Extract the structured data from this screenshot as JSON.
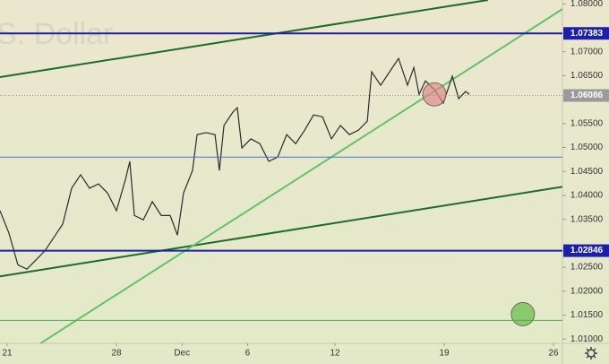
{
  "chart_data": {
    "type": "line",
    "watermark": "S. Dollar",
    "color": "#2b2b2b",
    "x": [
      -0.33,
      0.08,
      0.49,
      0.9,
      1.31,
      1.72,
      2.13,
      2.54,
      2.95,
      3.36,
      3.77,
      4.18,
      4.59,
      5.0,
      5.41,
      5.61,
      5.82,
      6.23,
      6.64,
      7.05,
      7.46,
      7.79,
      8.07,
      8.48,
      8.69,
      9.1,
      9.51,
      9.71,
      9.92,
      10.33,
      10.53,
      10.74,
      11.15,
      11.56,
      11.97,
      12.38,
      12.79,
      13.2,
      13.61,
      14.02,
      14.43,
      14.84,
      15.25,
      15.66,
      16.07,
      16.48,
      16.68,
      17.09,
      17.5,
      17.91,
      18.32,
      18.61,
      18.85,
      19.14,
      19.55,
      19.96,
      20.37,
      20.66,
      20.98,
      21.15
    ],
    "values": [
      1.0368,
      1.0321,
      1.0255,
      1.0246,
      1.0265,
      1.0284,
      1.0312,
      1.034,
      1.0415,
      1.0443,
      1.0415,
      1.0424,
      1.0405,
      1.0368,
      1.0433,
      1.0471,
      1.0358,
      1.0349,
      1.0387,
      1.0358,
      1.0358,
      1.0317,
      1.0405,
      1.0452,
      1.0527,
      1.0531,
      1.0527,
      1.0452,
      1.0546,
      1.0574,
      1.0583,
      1.0499,
      1.0518,
      1.0508,
      1.0471,
      1.048,
      1.0527,
      1.0508,
      1.0536,
      1.0568,
      1.0564,
      1.0518,
      1.0546,
      1.0527,
      1.0536,
      1.0555,
      1.0658,
      1.063,
      1.0658,
      1.0686,
      1.063,
      1.0667,
      1.0611,
      1.0639,
      1.0621,
      1.0593,
      1.0649,
      1.0602,
      1.0617,
      1.0611
    ],
    "levels": [
      {
        "value": 1.07383,
        "color": "#1c1fa8",
        "width": 2,
        "labeled": true
      },
      {
        "value": 1.06086,
        "color": "#9a9a9a",
        "width": 1,
        "labeled": true
      },
      {
        "value": 1.048,
        "color": "#3d7bd8",
        "width": 1,
        "labeled": false
      },
      {
        "value": 1.02846,
        "color": "#1c1fa8",
        "width": 2,
        "labeled": true
      },
      {
        "value": 1.0139,
        "color": "#4caf50",
        "width": 1,
        "labeled": false
      }
    ],
    "trendlines": [
      {
        "x": [
          -0.33,
          22.0
        ],
        "values": [
          1.0647,
          1.0808
        ],
        "color": "#1b6b2a"
      },
      {
        "x": [
          -0.33,
          25.41
        ],
        "values": [
          1.0231,
          1.0418
        ],
        "color": "#1b6b2a"
      },
      {
        "x": [
          1.52,
          25.41
        ],
        "values": [
          1.0091,
          1.0789
        ],
        "color": "#66c266"
      }
    ],
    "markers": [
      {
        "x": 19.55,
        "value": 1.0611,
        "color": "#e08a8a"
      },
      {
        "x": 23.6,
        "value": 1.0152,
        "color": "#66bb44"
      }
    ],
    "xlim": [
      -0.33,
      25.41
    ],
    "ylim": [
      1.0091,
      1.0808
    ],
    "xticks": [
      {
        "value": 0,
        "label": "21"
      },
      {
        "value": 5,
        "label": "28"
      },
      {
        "value": 8,
        "label": "Dec"
      },
      {
        "value": 11,
        "label": "6"
      },
      {
        "value": 15,
        "label": "12"
      },
      {
        "value": 20,
        "label": "19"
      },
      {
        "value": 25,
        "label": "26"
      }
    ],
    "yticks": [
      {
        "value": 1.08,
        "label": "1.08000"
      },
      {
        "value": 1.07,
        "label": "1.07000"
      },
      {
        "value": 1.065,
        "label": "1.06500"
      },
      {
        "value": 1.055,
        "label": "1.05500"
      },
      {
        "value": 1.05,
        "label": "1.05000"
      },
      {
        "value": 1.045,
        "label": "1.04500"
      },
      {
        "value": 1.04,
        "label": "1.04000"
      },
      {
        "value": 1.035,
        "label": "1.03500"
      },
      {
        "value": 1.025,
        "label": "1.02500"
      },
      {
        "value": 1.02,
        "label": "1.02000"
      },
      {
        "value": 1.015,
        "label": "1.01500"
      },
      {
        "value": 1.01,
        "label": "1.01000"
      }
    ]
  }
}
